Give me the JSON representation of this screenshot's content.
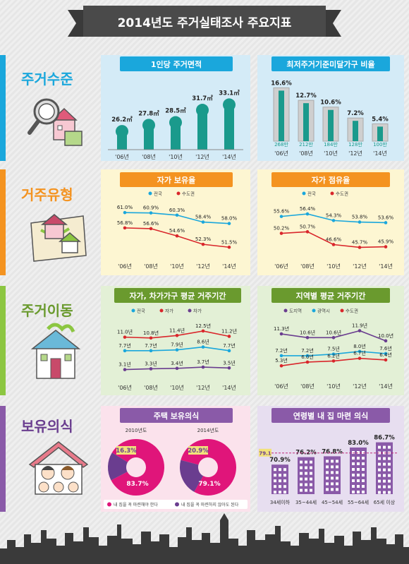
{
  "title": "2014년도 주거실태조사 주요지표",
  "colors": {
    "row1": "#1aa7dc",
    "row2": "#f49320",
    "row3": "#8cc641",
    "row4": "#8a5aa8",
    "teal": "#1a9a8c",
    "red": "#d9262b",
    "blue_dot": "#1aa7dc",
    "purple": "#6a3d8f",
    "magenta": "#e0157a",
    "orange": "#f49320"
  },
  "rows": [
    {
      "label": "주거수준"
    },
    {
      "label": "거주유형"
    },
    {
      "label": "주거이동"
    },
    {
      "label": "보유의식"
    }
  ],
  "chart_data": [
    {
      "type": "bar",
      "title": "1인당 주거면적",
      "categories": [
        "'06년",
        "'08년",
        "'10년",
        "'12년",
        "'14년"
      ],
      "values": [
        26.2,
        27.8,
        28.5,
        31.7,
        33.1
      ],
      "value_labels": [
        "26.2㎡",
        "27.8㎡",
        "28.5㎡",
        "31.7㎡",
        "33.1㎡"
      ]
    },
    {
      "type": "bar",
      "title": "최저주거기준미달가구 비율",
      "categories": [
        "'06년",
        "'08년",
        "'10년",
        "'12년",
        "'14년"
      ],
      "values": [
        16.6,
        12.7,
        10.6,
        7.2,
        5.4
      ],
      "value_labels": [
        "16.6%",
        "12.7%",
        "10.6%",
        "7.2%",
        "5.4%"
      ],
      "inner_labels": [
        "268만",
        "212만",
        "184만",
        "128만",
        "100만"
      ]
    },
    {
      "type": "line",
      "title": "자가 보유율",
      "categories": [
        "'06년",
        "'08년",
        "'10년",
        "'12년",
        "'14년"
      ],
      "series": [
        {
          "name": "전국",
          "values": [
            61.0,
            60.9,
            60.3,
            58.4,
            58.0
          ],
          "labels": [
            "61.0%",
            "60.9%",
            "60.3%",
            "58.4%",
            "58.0%"
          ]
        },
        {
          "name": "수도권",
          "values": [
            56.8,
            56.6,
            54.6,
            52.3,
            51.5
          ],
          "labels": [
            "56.8%",
            "56.6%",
            "54.6%",
            "52.3%",
            "51.5%"
          ]
        }
      ]
    },
    {
      "type": "line",
      "title": "자가 점유율",
      "categories": [
        "'06년",
        "'08년",
        "'10년",
        "'12년",
        "'14년"
      ],
      "series": [
        {
          "name": "전국",
          "values": [
            55.6,
            56.4,
            54.3,
            53.8,
            53.6
          ],
          "labels": [
            "55.6%",
            "56.4%",
            "54.3%",
            "53.8%",
            "53.6%"
          ]
        },
        {
          "name": "수도권",
          "values": [
            50.2,
            50.7,
            46.6,
            45.7,
            45.9
          ],
          "labels": [
            "50.2%",
            "50.7%",
            "46.6%",
            "45.7%",
            "45.9%"
          ]
        }
      ]
    },
    {
      "type": "line",
      "title": "자가, 차가가구 평균 거주기간",
      "categories": [
        "'06년",
        "'08년",
        "'10년",
        "'12년",
        "'14년"
      ],
      "series": [
        {
          "name": "전국",
          "values": [
            7.7,
            7.7,
            7.9,
            8.6,
            7.7
          ],
          "labels": [
            "7.7년",
            "7.7년",
            "7.9년",
            "8.6년",
            "7.7년"
          ]
        },
        {
          "name": "자가",
          "values": [
            11.0,
            10.8,
            11.4,
            12.5,
            11.2
          ],
          "labels": [
            "11.0년",
            "10.8년",
            "11.4년",
            "12.5년",
            "11.2년"
          ]
        },
        {
          "name": "차가",
          "values": [
            3.1,
            3.3,
            3.4,
            3.7,
            3.5
          ],
          "labels": [
            "3.1년",
            "3.3년",
            "3.4년",
            "3.7년",
            "3.5년"
          ]
        }
      ]
    },
    {
      "type": "line",
      "title": "지역별 평균 거주기간",
      "categories": [
        "'06년",
        "'08년",
        "'10년",
        "'12년",
        "'14년"
      ],
      "series": [
        {
          "name": "도지역",
          "values": [
            11.3,
            10.6,
            10.6,
            11.9,
            10.0
          ],
          "labels": [
            "11.3년",
            "10.6년",
            "10.6년",
            "11.9년",
            "10.0년"
          ]
        },
        {
          "name": "광역시",
          "values": [
            7.2,
            7.2,
            7.5,
            8.0,
            7.6
          ],
          "labels": [
            "7.2년",
            "7.2년",
            "7.5년",
            "8.0년",
            "7.6년"
          ]
        },
        {
          "name": "수도권",
          "values": [
            5.3,
            6.0,
            6.2,
            6.7,
            6.4
          ],
          "labels": [
            "5.3년",
            "6.0년",
            "6.2년",
            "6.7년",
            "6.4년"
          ]
        }
      ]
    },
    {
      "type": "pie",
      "title": "주택 보유의식",
      "charts": [
        {
          "label": "2010년도",
          "values": [
            83.7,
            16.3
          ],
          "labels": [
            "83.7%",
            "16.3%"
          ]
        },
        {
          "label": "2014년도",
          "values": [
            79.1,
            20.9
          ],
          "labels": [
            "79.1%",
            "20.9%"
          ]
        }
      ],
      "legend": [
        "내 집을 꼭 마련해야 한다",
        "내 집을 꼭 마련하지 않아도 된다"
      ]
    },
    {
      "type": "bar",
      "title": "연령별 내 집 마련 의식",
      "categories": [
        "34세이하",
        "35~44세",
        "45~54세",
        "55~64세",
        "65세 이상"
      ],
      "values": [
        70.9,
        76.2,
        76.8,
        83.0,
        86.7
      ],
      "value_labels": [
        "70.9%",
        "76.2%",
        "76.8%",
        "83.0%",
        "86.7%"
      ],
      "reference": 79.1,
      "reference_label": "79.1"
    }
  ]
}
